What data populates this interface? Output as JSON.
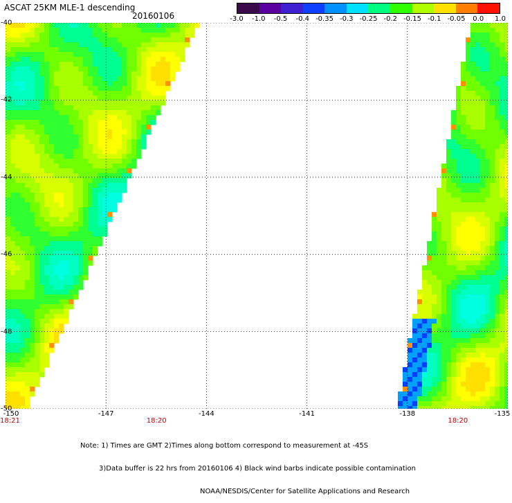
{
  "title": {
    "main": "ASCAT 25KM MLE-1 descending",
    "date": "20160106"
  },
  "colorbar": {
    "colors": [
      "#3a0a4a",
      "#5a00a0",
      "#4020d0",
      "#1040ff",
      "#0090ff",
      "#00e0ff",
      "#00ff80",
      "#30ff00",
      "#b0ff00",
      "#ffe000",
      "#ff8000",
      "#ff1000"
    ],
    "tick_labels": [
      "-3.0",
      "-1.0",
      "-0.5",
      "-0.4",
      "-0.35",
      "-0.3",
      "-0.25",
      "-0.2",
      "-0.15",
      "-0.1",
      "-0.05",
      "0.0",
      "1.0"
    ]
  },
  "map": {
    "lat_labels": [
      "-40",
      "-42",
      "-44",
      "-46",
      "-48",
      "-50"
    ],
    "lon_labels": [
      "-150",
      "-147",
      "-144",
      "-141",
      "-138",
      "-135"
    ],
    "lon_range": [
      -150,
      -135
    ],
    "lat_range": [
      -40,
      -50
    ],
    "swaths": [
      {
        "name": "west-swath",
        "edge_top_lon": -144.2,
        "edge_bottom_lon": -149.3,
        "side": "west"
      },
      {
        "name": "east-swath",
        "edge_top_lon": -136.2,
        "edge_bottom_lon": -138.4,
        "side": "east"
      }
    ]
  },
  "time_labels": [
    {
      "text": "18:21",
      "lon": -150
    },
    {
      "text": "18:20",
      "lon": -145.5
    },
    {
      "text": "18:20",
      "lon": -136.5
    }
  ],
  "notes": [
    "Note: 1) Times are GMT 2)Times along bottom correspond to measurement at -45S",
    "3)Data buffer is 22 hrs from 20160106 4) Black wind barbs indicate possible contamination",
    "NOAA/NESDIS/Center for Satellite Applications and Research"
  ]
}
